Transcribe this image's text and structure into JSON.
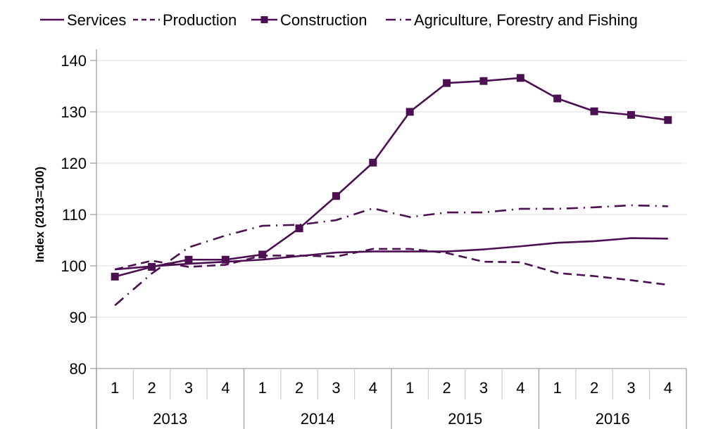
{
  "chart_data": {
    "type": "line",
    "title": "",
    "xlabel": "",
    "ylabel": "Index (2013=100)",
    "ylim": [
      80,
      140
    ],
    "yticks": [
      80,
      90,
      100,
      110,
      120,
      130,
      140
    ],
    "grid": true,
    "legend_position": "top",
    "color": "#4B0F52",
    "quarters": [
      "1",
      "2",
      "3",
      "4",
      "1",
      "2",
      "3",
      "4",
      "1",
      "2",
      "3",
      "4",
      "1",
      "2",
      "3",
      "4"
    ],
    "years": [
      "2013",
      "2014",
      "2015",
      "2016"
    ],
    "series": [
      {
        "name": "Services",
        "style": "solid",
        "marker": "none",
        "values": [
          99.3,
          99.9,
          100.4,
          100.8,
          101.2,
          101.9,
          102.6,
          102.8,
          102.8,
          102.8,
          103.2,
          103.8,
          104.5,
          104.8,
          105.4,
          105.3
        ]
      },
      {
        "name": "Production",
        "style": "dashed",
        "marker": "none",
        "values": [
          99.3,
          101.0,
          99.8,
          100.2,
          102.0,
          102.0,
          101.8,
          103.3,
          103.3,
          102.5,
          100.8,
          100.7,
          98.6,
          98.0,
          97.2,
          96.3
        ]
      },
      {
        "name": "Construction",
        "style": "solid",
        "marker": "square",
        "values": [
          97.9,
          99.8,
          101.2,
          101.2,
          102.2,
          107.3,
          113.6,
          120.1,
          130.0,
          135.6,
          136.0,
          136.6,
          132.6,
          130.1,
          129.4,
          128.4
        ]
      },
      {
        "name": "Agriculture, Forestry and Fishing",
        "style": "dashdot",
        "marker": "none",
        "values": [
          92.3,
          98.5,
          103.6,
          105.9,
          107.8,
          108.0,
          108.9,
          111.2,
          109.5,
          110.4,
          110.4,
          111.1,
          111.1,
          111.4,
          111.8,
          111.6
        ]
      }
    ]
  }
}
